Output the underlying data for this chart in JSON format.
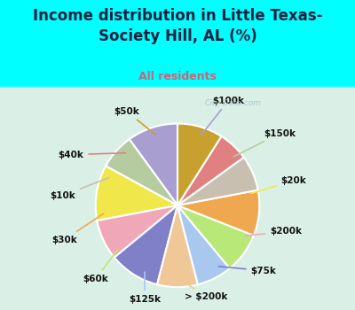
{
  "title": "Income distribution in Little Texas-\nSociety Hill, AL (%)",
  "subtitle": "All residents",
  "bg_color": "#00FFFF",
  "chart_bg_color_top": "#e8f5f0",
  "chart_bg_color_bottom": "#d0ece0",
  "labels": [
    "$100k",
    "$150k",
    "$20k",
    "$200k",
    "$75k",
    "> $200k",
    "$125k",
    "$60k",
    "$30k",
    "$10k",
    "$40k",
    "$50k"
  ],
  "values": [
    10,
    7,
    11,
    8,
    10,
    8,
    7,
    8,
    9,
    7,
    6,
    9
  ],
  "colors": [
    "#a89ed0",
    "#b5cca0",
    "#f0e84a",
    "#f0a8b8",
    "#8080c8",
    "#f0c898",
    "#a8c8f0",
    "#b8e878",
    "#f0a850",
    "#c8bfb0",
    "#e08080",
    "#c8a030"
  ],
  "wedge_linewidth": 1.5,
  "wedge_edgecolor": "#ffffff",
  "startangle": 90,
  "label_fontsize": 7.5,
  "title_fontsize": 12,
  "subtitle_fontsize": 9,
  "title_color": "#1a2040",
  "subtitle_color": "#cc6677",
  "watermark": "City-Data.com",
  "watermark_color": "#aabbcc"
}
